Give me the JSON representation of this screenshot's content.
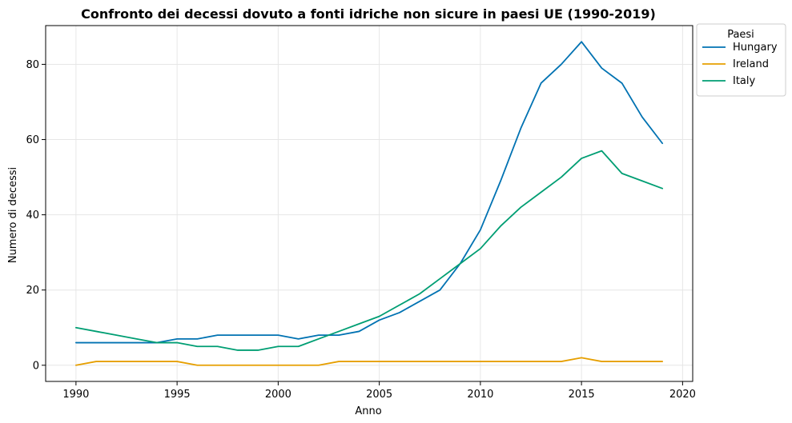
{
  "chart_data": {
    "type": "line",
    "title": "Confronto dei decessi dovuto a fonti idriche non sicure in paesi UE (1990-2019)",
    "xlabel": "Anno",
    "ylabel": "Numero di decessi",
    "xlim": [
      1988.5,
      2020.5
    ],
    "ylim": [
      -4.3,
      90.3
    ],
    "xticks": [
      1990,
      1995,
      2000,
      2005,
      2010,
      2015,
      2020
    ],
    "xtick_labels": [
      "1990",
      "1995",
      "2000",
      "2005",
      "2010",
      "2015",
      "2020"
    ],
    "yticks": [
      0,
      20,
      40,
      60,
      80
    ],
    "ytick_labels": [
      "0",
      "20",
      "40",
      "60",
      "80"
    ],
    "grid": true,
    "legend": {
      "title": "Paesi",
      "position": "outside-top-right"
    },
    "x": [
      1990,
      1991,
      1992,
      1993,
      1994,
      1995,
      1996,
      1997,
      1998,
      1999,
      2000,
      2001,
      2002,
      2003,
      2004,
      2005,
      2006,
      2007,
      2008,
      2009,
      2010,
      2011,
      2012,
      2013,
      2014,
      2015,
      2016,
      2017,
      2018,
      2019
    ],
    "series": [
      {
        "name": "Hungary",
        "color": "#0072b2",
        "values": [
          6,
          6,
          6,
          6,
          6,
          7,
          7,
          8,
          8,
          8,
          8,
          7,
          8,
          8,
          9,
          12,
          14,
          17,
          20,
          27,
          36,
          49,
          63,
          75,
          80,
          86,
          79,
          75,
          66,
          59
        ]
      },
      {
        "name": "Ireland",
        "color": "#e69f00",
        "values": [
          0,
          1,
          1,
          1,
          1,
          1,
          0,
          0,
          0,
          0,
          0,
          0,
          0,
          1,
          1,
          1,
          1,
          1,
          1,
          1,
          1,
          1,
          1,
          1,
          1,
          2,
          1,
          1,
          1,
          1
        ]
      },
      {
        "name": "Italy",
        "color": "#009e73",
        "values": [
          10,
          9,
          8,
          7,
          6,
          6,
          5,
          5,
          4,
          4,
          5,
          5,
          7,
          9,
          11,
          13,
          16,
          19,
          23,
          27,
          31,
          37,
          42,
          46,
          50,
          55,
          57,
          51,
          49,
          47
        ]
      }
    ]
  }
}
